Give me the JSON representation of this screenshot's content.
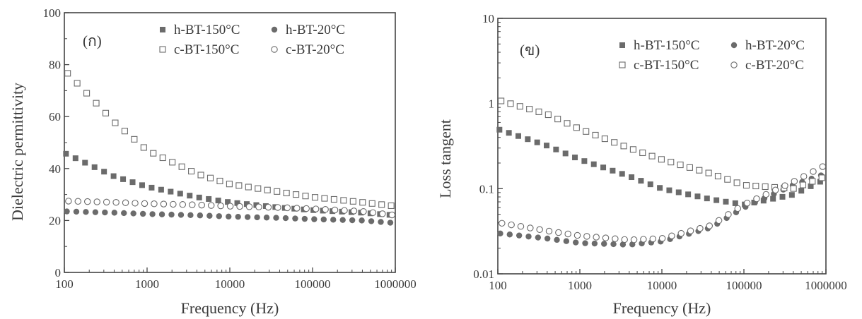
{
  "chart_data": [
    {
      "type": "scatter",
      "panel_label": "(ก)",
      "xlabel": "Frequency (Hz)",
      "ylabel": "Dielectric permittivity",
      "xscale": "log",
      "xlim": [
        100,
        1000000
      ],
      "ylim": [
        0,
        100
      ],
      "xticks": [
        100,
        1000,
        10000,
        100000,
        1000000
      ],
      "xtick_labels": [
        "100",
        "1000",
        "10000",
        "100000",
        "1000000"
      ],
      "yticks": [
        0,
        20,
        40,
        60,
        80,
        100
      ],
      "ytick_labels": [
        "0",
        "20",
        "40",
        "60",
        "80",
        "100"
      ],
      "legend_position": "top-right",
      "x": [
        100,
        398.1,
        1000,
        3981,
        10000,
        39810,
        100000,
        398100,
        1000000
      ],
      "series": [
        {
          "name": "h-BT-150°C",
          "marker": "square-filled",
          "values": [
            46,
            37,
            33,
            29,
            27,
            25,
            24,
            23,
            22
          ]
        },
        {
          "name": "h-BT-20°C",
          "marker": "circle-filled",
          "values": [
            23.5,
            23,
            22.5,
            22,
            21.5,
            21,
            20.5,
            20,
            19
          ]
        },
        {
          "name": "c-BT-150°C",
          "marker": "square-open",
          "values": [
            78,
            58,
            47,
            38,
            34,
            31,
            29,
            27,
            25.5
          ]
        },
        {
          "name": "c-BT-20°C",
          "marker": "circle-open",
          "values": [
            27.5,
            27,
            26.5,
            26,
            25.5,
            25,
            24.5,
            23.5,
            22
          ]
        }
      ]
    },
    {
      "type": "scatter",
      "panel_label": "(ข)",
      "xlabel": "Frequency (Hz)",
      "ylabel": "Loss tangent",
      "xscale": "log",
      "yscale": "log",
      "xlim": [
        100,
        1000000
      ],
      "ylim": [
        0.01,
        10
      ],
      "xticks": [
        100,
        1000,
        10000,
        100000,
        1000000
      ],
      "xtick_labels": [
        "100",
        "1000",
        "10000",
        "100000",
        "1000000"
      ],
      "yticks": [
        0.01,
        0.1,
        1,
        10
      ],
      "ytick_labels": [
        "0.01",
        "0.1",
        "1",
        "10"
      ],
      "legend_position": "top-right",
      "x": [
        100,
        398.1,
        1000,
        3981,
        10000,
        39810,
        100000,
        398100,
        1000000
      ],
      "series": [
        {
          "name": "h-BT-150°C",
          "marker": "square-filled",
          "values": [
            0.5,
            0.32,
            0.22,
            0.14,
            0.1,
            0.075,
            0.065,
            0.085,
            0.13
          ]
        },
        {
          "name": "h-BT-20°C",
          "marker": "circle-filled",
          "values": [
            0.03,
            0.026,
            0.023,
            0.022,
            0.024,
            0.035,
            0.06,
            0.11,
            0.15
          ]
        },
        {
          "name": "c-BT-150°C",
          "marker": "square-open",
          "values": [
            1.1,
            0.75,
            0.5,
            0.3,
            0.22,
            0.15,
            0.11,
            0.1,
            0.14
          ]
        },
        {
          "name": "c-BT-20°C",
          "marker": "circle-open",
          "values": [
            0.04,
            0.032,
            0.028,
            0.025,
            0.026,
            0.037,
            0.065,
            0.12,
            0.19
          ]
        }
      ]
    }
  ]
}
